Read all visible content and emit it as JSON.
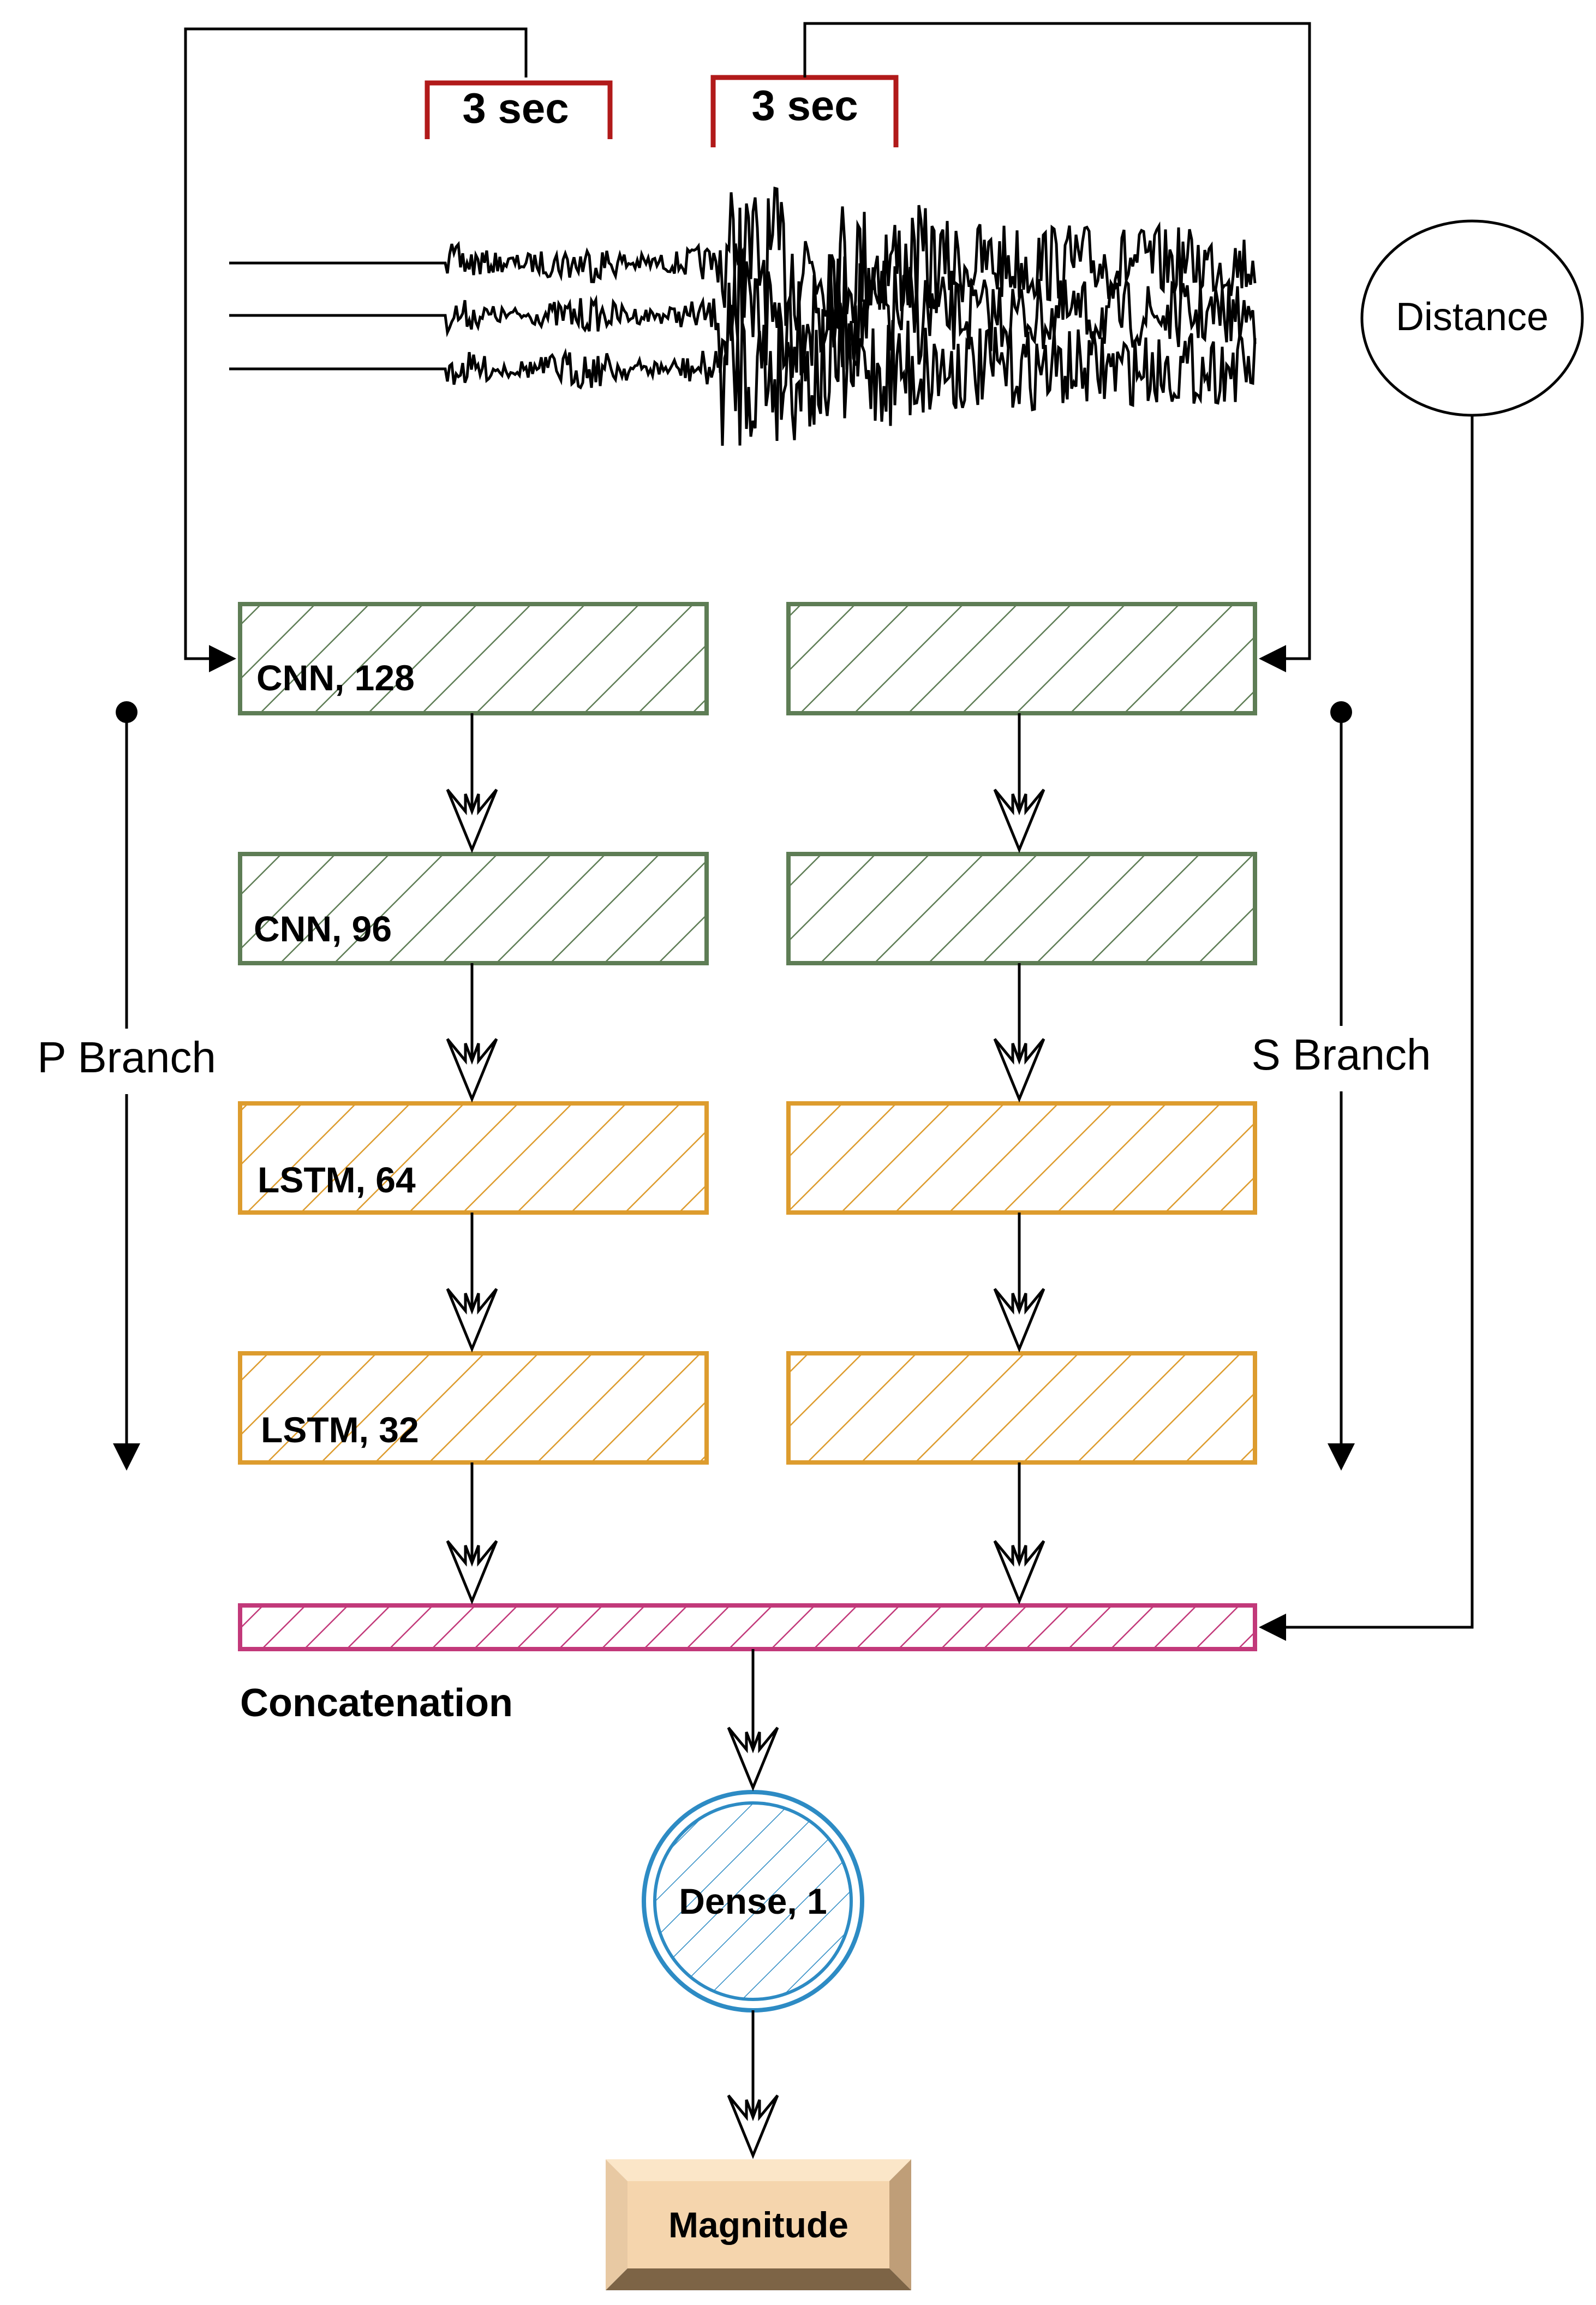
{
  "window_labels": {
    "p_window": "3 sec",
    "s_window": "3 sec"
  },
  "branches": {
    "p_label": "P Branch",
    "s_label": "S Branch"
  },
  "distance_label": "Distance",
  "p_layers": [
    "CNN, 128",
    "CNN, 96",
    "LSTM, 64",
    "LSTM, 32"
  ],
  "s_layers": [
    "",
    "",
    "",
    ""
  ],
  "concat_label": "Concatenation",
  "dense_label": "Dense, 1",
  "output_label": "Magnitude",
  "colors": {
    "cnn": "#5e7d55",
    "lstm": "#dd9c2e",
    "concat": "#c2397a",
    "dense": "#2d8bc4",
    "bracket": "#b11a1a",
    "output_face": "#f5d5ad",
    "output_bevel_light": "#fbe6c8",
    "output_bevel_dark": "#bf9e78"
  }
}
